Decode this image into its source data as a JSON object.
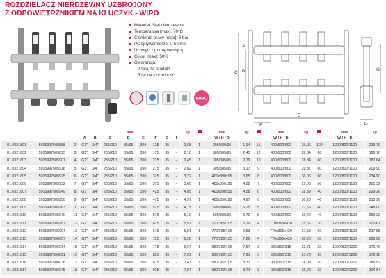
{
  "header": {
    "title_lines": [
      "ROZDZIELACZ NIERDZEWNY UZBROJONY",
      "Z ODPOWIETRZNIKIEM NA KLUCZYK - WIRO"
    ]
  },
  "features": [
    "Materiał: Stal nierdzewna",
    "Temperatura [max]: 70°C",
    "Ciśnienie pracy [max]: 6 bar",
    "Przepływomierze: 0-5 l/min",
    "Uchwyt: z gumą tłumiącą",
    "Glikol [max]: 50%",
    "Gwarancja:"
  ],
  "warranty": [
    "2 lata na produkt",
    "5 lat na szczelność"
  ],
  "badge": "WIRO",
  "diagram": {
    "labels": [
      "A",
      "B",
      "C",
      "F",
      "E",
      "D",
      "G"
    ]
  },
  "table": {
    "units": [
      "mm",
      "kg",
      "mm",
      "kg",
      "mm",
      "kg",
      "mm",
      "kg"
    ],
    "letters": [
      "A",
      "B",
      "C",
      "D",
      "E",
      "F",
      "G",
      "I"
    ],
    "whd": [
      "W / H / D",
      "W / H / D",
      "W / H / D"
    ],
    "rows": [
      [
        "01.0321801",
        "5905997505888",
        "2",
        "G1\"",
        "3/4\"",
        "235/210",
        "85/65",
        "390",
        "125",
        "35",
        "-",
        "1,68",
        "1",
        "205/380/95",
        "1,94",
        "15",
        "400/500/600",
        "29,96",
        "100",
        "1200/800/1100",
        "213,70"
      ],
      [
        "01.0321802",
        "5905997505895",
        "3",
        "G1\"",
        "3/4\"",
        "235/210",
        "85/65",
        "390",
        "175",
        "35",
        "-",
        "2,10",
        "1",
        "305/385/95",
        "2,45",
        "12",
        "400/500/600",
        "28,84",
        "80",
        "1200/800/1100",
        "196,70"
      ],
      [
        "01.0321803",
        "5905997505901",
        "4",
        "G1\"",
        "3/4\"",
        "235/210",
        "85/65",
        "390",
        "225",
        "35",
        "-",
        "2,45",
        "1",
        "305/385/95",
        "2,79",
        "10",
        "400/500/600",
        "28,84",
        "60",
        "1200/800/1100",
        "187,64"
      ],
      [
        "01.0321804",
        "5905997505918",
        "5",
        "G1\"",
        "3/4\"",
        "235/210",
        "85/65",
        "390",
        "275",
        "35",
        "-",
        "2,82",
        "1",
        "305/385/95",
        "3,17",
        "9",
        "400/500/600",
        "29,37",
        "60",
        "1200/800/1100",
        "209,90"
      ],
      [
        "01.0321805",
        "5905997505925",
        "6",
        "G1\"",
        "3/4\"",
        "235/210",
        "85/65",
        "390",
        "325",
        "35",
        "-",
        "3,22",
        "1",
        "400x390x95",
        "3,65",
        "8",
        "400/500/600",
        "30,06",
        "60",
        "1200/800/1100",
        "234,90"
      ],
      [
        "01.0321806",
        "5905997505932",
        "7",
        "G1\"",
        "3/4\"",
        "235/210",
        "85/65",
        "390",
        "375",
        "35",
        "-",
        "3,60",
        "1",
        "400x390x95",
        "4,02",
        "7",
        "400/500/600",
        "29,05",
        "60",
        "1200/800/1100",
        "261,32"
      ],
      [
        "01.0321807",
        "5905997505949",
        "8",
        "G1\"",
        "3/4\"",
        "235/210",
        "85/65",
        "390",
        "425",
        "35",
        "-",
        "4,05",
        "1",
        "400x390x95",
        "4,58",
        "6",
        "400/500/600",
        "28,39",
        "40",
        "1200/800/1100",
        "229,26"
      ],
      [
        "01.0321808",
        "5905997505956",
        "9",
        "G1\"",
        "3/4\"",
        "235/210",
        "85/65",
        "390",
        "475",
        "35",
        "-",
        "4,37",
        "1",
        "400x390x95",
        "4,97",
        "6",
        "400/500/600",
        "30,28",
        "40",
        "1200/800/1100",
        "215,96"
      ],
      [
        "01.0321809",
        "5905997505963",
        "10",
        "G1\"",
        "3/4\"",
        "235/210",
        "85/65",
        "390",
        "525",
        "35",
        "-",
        "4,75",
        "1",
        "595/380/95",
        "5,25",
        "5",
        "400/500/600",
        "27,65",
        "40",
        "1200/800/1100",
        "248,00"
      ],
      [
        "01.0321810",
        "5905997505970",
        "11",
        "G1\"",
        "3/4\"",
        "235/210",
        "85/65",
        "390",
        "575",
        "35",
        "-",
        "5,10",
        "1",
        "595/380/95",
        "5,70",
        "5",
        "400/500/600",
        "29,40",
        "40",
        "1200/800/1100",
        "259,20"
      ],
      [
        "01.0321811",
        "5905997505987",
        "12",
        "G1\"",
        "3/4\"",
        "235/210",
        "85/65",
        "390",
        "625",
        "35",
        "-",
        "5,51",
        "1",
        "770/365/105",
        "6,19",
        "4",
        "770x365x420",
        "25,66",
        "30",
        "1200/800/1100",
        "205,67"
      ],
      [
        "01.0321812",
        "5905997505994",
        "13",
        "G1\"",
        "3/4\"",
        "235/210",
        "85/65",
        "390",
        "675",
        "35",
        "-",
        "5,91",
        "1",
        "770/365/105",
        "6,53",
        "4",
        "770x365x420",
        "27,58",
        "30",
        "1200/800/1100",
        "217,58"
      ],
      [
        "01.0321813",
        "5905997506007",
        "14",
        "G1\"",
        "3/4\"",
        "235/210",
        "85/65",
        "390",
        "725",
        "35",
        "-",
        "6,28",
        "1",
        "770/365/105",
        "7,26",
        "4",
        "770x365x420",
        "30,20",
        "30",
        "1200/800/1100",
        "228,68"
      ],
      [
        "01.0321814",
        "5905997506014",
        "15",
        "G1\"",
        "3/4\"",
        "235/210",
        "85/65",
        "390",
        "775",
        "35",
        "-",
        "6,67",
        "1",
        "980/360/105",
        "7,57",
        "3",
        "980/360/315",
        "22,71",
        "20",
        "1200/800/1200",
        "171,40"
      ],
      [
        "01.0321815",
        "5905997506021",
        "16",
        "G1\"",
        "3/4\"",
        "235/210",
        "85/65",
        "390",
        "825",
        "35",
        "-",
        "7,01",
        "1",
        "980/360/105",
        "7,91",
        "3",
        "980/360/315",
        "23,73",
        "20",
        "1200/800/1200",
        "178,16"
      ],
      [
        "01.0321816",
        "5905997506038",
        "17",
        "G1\"",
        "3/4\"",
        "235/210",
        "85/65",
        "390",
        "875",
        "35",
        "-",
        "7,43",
        "1",
        "980/360/105",
        "8,33",
        "3",
        "980/360/315",
        "24,99",
        "20",
        "1200/800/1200",
        "186,52"
      ],
      [
        "01.0321817",
        "5905997506045",
        "18",
        "G1\"",
        "3/4\"",
        "235/210",
        "85/65",
        "390",
        "925",
        "35",
        "-",
        "7,84",
        "1",
        "980/360/105",
        "8,74",
        "3",
        "980/360/315",
        "26,22",
        "20",
        "1200/800/1200",
        "194,84"
      ]
    ]
  }
}
